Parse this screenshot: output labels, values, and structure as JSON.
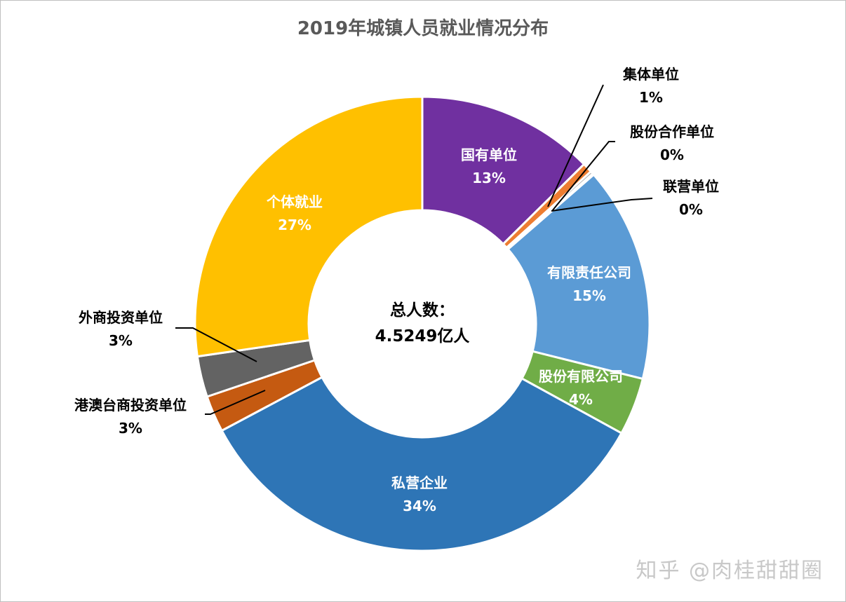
{
  "chart_data": {
    "type": "pie",
    "variant": "donut",
    "title": "2019年城镇人员就业情况分布",
    "center_label": {
      "line1": "总人数：",
      "line2": "4.5249亿人"
    },
    "slices": [
      {
        "name": "国有单位",
        "value": 12.6,
        "label": "13%",
        "color": "#7030A0"
      },
      {
        "name": "集体单位",
        "value": 0.7,
        "label": "1%",
        "color": "#ED7D31"
      },
      {
        "name": "股份合作单位",
        "value": 0.2,
        "label": "0%",
        "color": "#A5A5A5"
      },
      {
        "name": "联营单位",
        "value": 0.1,
        "label": "0%",
        "color": "#FFC000"
      },
      {
        "name": "有限责任公司",
        "value": 15.3,
        "label": "15%",
        "color": "#5B9BD5"
      },
      {
        "name": "股份有限公司",
        "value": 4.1,
        "label": "4%",
        "color": "#70AD47"
      },
      {
        "name": "私营企业",
        "value": 34.2,
        "label": "34%",
        "color": "#2E75B6"
      },
      {
        "name": "港澳台商投资单位",
        "value": 2.6,
        "label": "3%",
        "color": "#C55A11"
      },
      {
        "name": "外商投资单位",
        "value": 2.9,
        "label": "3%",
        "color": "#636363"
      },
      {
        "name": "个体就业",
        "value": 27.3,
        "label": "27%",
        "color": "#FFC000"
      }
    ]
  },
  "watermark": "知乎 @肉桂甜甜圈"
}
